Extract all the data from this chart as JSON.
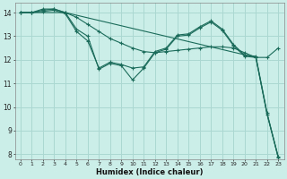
{
  "xlabel": "Humidex (Indice chaleur)",
  "bg_color": "#cceee8",
  "grid_color": "#aad8d0",
  "line_color": "#1a6b5a",
  "xlim": [
    -0.5,
    23.5
  ],
  "ylim": [
    7.8,
    14.4
  ],
  "yticks": [
    8,
    9,
    10,
    11,
    12,
    13,
    14
  ],
  "xticks": [
    0,
    1,
    2,
    3,
    4,
    5,
    6,
    7,
    8,
    9,
    10,
    11,
    12,
    13,
    14,
    15,
    16,
    17,
    18,
    19,
    20,
    21,
    22,
    23
  ],
  "lines": [
    {
      "x": [
        0,
        1,
        2,
        3,
        4,
        5,
        6,
        7,
        8,
        9,
        10,
        11,
        12,
        13,
        14,
        15,
        16,
        17,
        18,
        19,
        20,
        21,
        22,
        23
      ],
      "y": [
        14.0,
        14.0,
        14.1,
        14.15,
        14.0,
        13.8,
        13.5,
        13.2,
        12.9,
        12.7,
        12.5,
        12.35,
        12.3,
        12.35,
        12.4,
        12.45,
        12.5,
        12.55,
        12.55,
        12.5,
        12.3,
        12.1,
        12.1,
        12.5
      ],
      "marker": true
    },
    {
      "x": [
        0,
        1,
        2,
        3,
        4,
        5,
        6,
        7,
        8,
        9,
        10,
        11,
        12,
        13,
        14,
        15,
        16,
        17,
        18,
        19,
        20,
        21,
        22,
        23
      ],
      "y": [
        14.0,
        14.0,
        14.15,
        14.15,
        14.0,
        13.3,
        13.0,
        11.6,
        11.85,
        11.75,
        11.15,
        11.65,
        12.3,
        12.45,
        13.0,
        13.05,
        13.35,
        13.6,
        13.25,
        12.6,
        12.15,
        12.1,
        9.7,
        7.9
      ],
      "marker": true
    },
    {
      "x": [
        0,
        1,
        2,
        3,
        4,
        5,
        6,
        7,
        8,
        9,
        10,
        11,
        12,
        13,
        14,
        15,
        16,
        17,
        18,
        19,
        20,
        21,
        22,
        23
      ],
      "y": [
        14.0,
        14.0,
        14.05,
        14.1,
        13.95,
        13.2,
        12.8,
        11.65,
        11.9,
        11.8,
        11.65,
        11.7,
        12.35,
        12.5,
        13.05,
        13.1,
        13.4,
        13.65,
        13.3,
        12.65,
        12.2,
        12.15,
        9.75,
        7.85
      ],
      "marker": true
    },
    {
      "x": [
        0,
        4,
        21,
        22,
        23
      ],
      "y": [
        14.0,
        14.0,
        12.1,
        9.7,
        7.85
      ],
      "marker": false
    }
  ]
}
